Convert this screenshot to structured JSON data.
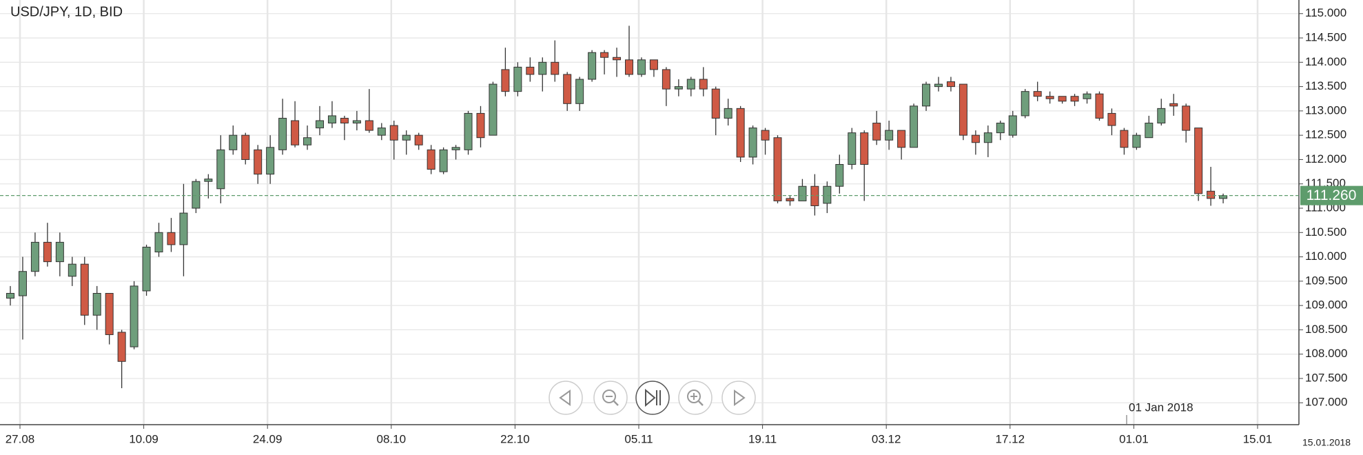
{
  "chart_data": {
    "type": "candlestick",
    "title": "USD/JPY, 1D, BID",
    "xtick_labels": [
      "27.08",
      "10.09",
      "24.09",
      "08.10",
      "22.10",
      "05.11",
      "19.11",
      "03.12",
      "17.12",
      "01.01",
      "15.01"
    ],
    "open": [
      109.15,
      109.2,
      109.7,
      110.3,
      109.9,
      109.6,
      109.85,
      108.8,
      109.25,
      108.45,
      108.15,
      109.3,
      110.1,
      110.5,
      110.25,
      111.0,
      111.55,
      111.4,
      112.2,
      112.5,
      112.2,
      111.7,
      112.2,
      112.8,
      112.3,
      112.65,
      112.75,
      112.85,
      112.75,
      112.8,
      112.5,
      112.7,
      112.4,
      112.5,
      112.2,
      111.75,
      112.2,
      112.2,
      112.95,
      112.5,
      113.85,
      113.4,
      113.9,
      113.75,
      114.0,
      113.75,
      113.15,
      113.65,
      114.2,
      114.1,
      114.05,
      113.75,
      114.05,
      113.85,
      113.45,
      113.45,
      113.65,
      113.45,
      112.85,
      113.05,
      112.05,
      112.6,
      112.45,
      111.2,
      111.15,
      111.45,
      111.1,
      111.45,
      111.9,
      112.55,
      112.75,
      112.4,
      112.6,
      112.25,
      113.1,
      113.5,
      113.6,
      113.55,
      112.5,
      112.35,
      112.55,
      112.5,
      112.9,
      113.4,
      113.3,
      113.3,
      113.3,
      113.25,
      113.35,
      112.95,
      112.6,
      112.25,
      112.45,
      112.75,
      113.15,
      113.1,
      112.65,
      111.35,
      111.2
    ],
    "high": [
      109.4,
      110.0,
      110.5,
      110.7,
      110.5,
      110.0,
      110.0,
      109.4,
      109.25,
      108.5,
      109.5,
      110.25,
      110.7,
      110.8,
      111.5,
      111.6,
      111.7,
      112.5,
      112.7,
      112.55,
      112.3,
      112.5,
      113.25,
      113.2,
      112.7,
      113.1,
      113.2,
      112.9,
      113.0,
      113.45,
      112.75,
      112.8,
      112.6,
      112.55,
      112.3,
      112.25,
      112.3,
      113.0,
      113.1,
      113.6,
      114.3,
      114.0,
      114.1,
      114.1,
      114.45,
      113.8,
      113.7,
      114.25,
      114.25,
      114.3,
      114.75,
      114.1,
      114.05,
      113.9,
      113.65,
      113.7,
      113.9,
      113.5,
      113.25,
      113.1,
      112.7,
      112.65,
      112.5,
      111.25,
      111.6,
      111.7,
      111.55,
      112.1,
      112.65,
      112.6,
      113.0,
      112.8,
      112.6,
      113.15,
      113.6,
      113.7,
      113.7,
      113.55,
      112.6,
      112.7,
      112.8,
      113.0,
      113.45,
      113.6,
      113.4,
      113.3,
      113.35,
      113.4,
      113.4,
      113.05,
      112.65,
      112.55,
      112.9,
      113.25,
      113.35,
      113.15,
      112.65,
      111.85,
      111.3
    ],
    "low": [
      109.0,
      108.3,
      109.6,
      109.8,
      109.6,
      109.4,
      108.6,
      108.5,
      108.2,
      107.3,
      108.1,
      109.2,
      110.0,
      110.1,
      109.6,
      110.9,
      111.2,
      111.1,
      112.1,
      111.9,
      111.5,
      111.5,
      112.1,
      112.25,
      112.2,
      112.5,
      112.65,
      112.4,
      112.6,
      112.55,
      112.4,
      112.0,
      112.1,
      112.2,
      111.7,
      111.7,
      112.0,
      112.1,
      112.25,
      112.5,
      113.3,
      113.3,
      113.6,
      113.4,
      113.6,
      113.0,
      113.0,
      113.6,
      113.75,
      113.7,
      113.7,
      113.7,
      113.7,
      113.1,
      113.3,
      113.3,
      113.3,
      112.5,
      112.7,
      111.95,
      111.9,
      112.1,
      111.1,
      111.05,
      111.15,
      110.85,
      110.9,
      111.3,
      111.8,
      111.15,
      112.3,
      112.2,
      112.0,
      112.25,
      113.0,
      113.4,
      113.4,
      112.4,
      112.1,
      112.05,
      112.4,
      112.45,
      112.85,
      113.2,
      113.15,
      113.15,
      113.1,
      113.15,
      112.8,
      112.5,
      112.1,
      112.2,
      112.45,
      112.7,
      112.9,
      112.35,
      111.15,
      111.05,
      111.1
    ],
    "close": [
      109.25,
      109.7,
      110.3,
      109.9,
      110.3,
      109.85,
      108.8,
      109.25,
      108.4,
      107.85,
      109.4,
      110.2,
      110.5,
      110.25,
      110.9,
      111.55,
      111.6,
      112.2,
      112.5,
      112.0,
      111.7,
      112.25,
      112.85,
      112.3,
      112.45,
      112.8,
      112.9,
      112.75,
      112.8,
      112.6,
      112.65,
      112.4,
      112.5,
      112.3,
      111.8,
      112.2,
      112.25,
      112.95,
      112.45,
      113.55,
      113.4,
      113.9,
      113.75,
      114.0,
      113.75,
      113.15,
      113.65,
      114.2,
      114.1,
      114.05,
      113.75,
      114.05,
      113.85,
      113.45,
      113.5,
      113.65,
      113.45,
      112.85,
      113.05,
      112.05,
      112.65,
      112.4,
      111.15,
      111.15,
      111.45,
      111.05,
      111.45,
      111.9,
      112.55,
      111.9,
      112.4,
      112.6,
      112.25,
      113.1,
      113.55,
      113.55,
      113.5,
      112.5,
      112.35,
      112.55,
      112.75,
      112.9,
      113.4,
      113.3,
      113.25,
      113.2,
      113.2,
      113.35,
      112.85,
      112.7,
      112.25,
      112.5,
      112.75,
      113.05,
      113.1,
      112.6,
      111.3,
      111.2,
      111.26
    ],
    "up_color": "#6f9e7c",
    "down_color": "#cf5a45",
    "ylim": [
      106.55,
      115.28
    ],
    "yticks": [
      {
        "value": 107,
        "label": "107.000"
      },
      {
        "value": 107.5,
        "label": "107.500"
      },
      {
        "value": 108,
        "label": "108.000"
      },
      {
        "value": 108.5,
        "label": "108.500"
      },
      {
        "value": 109,
        "label": "109.000"
      },
      {
        "value": 109.5,
        "label": "109.500"
      },
      {
        "value": 110,
        "label": "110.000"
      },
      {
        "value": 110.5,
        "label": "110.500"
      },
      {
        "value": 111,
        "label": "111.000"
      },
      {
        "value": 111.5,
        "label": "111.500"
      },
      {
        "value": 112,
        "label": "112.000"
      },
      {
        "value": 112.5,
        "label": "112.500"
      },
      {
        "value": 113,
        "label": "113.000"
      },
      {
        "value": 113.5,
        "label": "113.500"
      },
      {
        "value": 114,
        "label": "114.000"
      },
      {
        "value": 114.5,
        "label": "114.500"
      },
      {
        "value": 115,
        "label": "115.000"
      }
    ],
    "grid": true,
    "last_price": {
      "value": 111.26,
      "label": "111.260",
      "color": "#5e9c6c"
    },
    "annotation": "01 Jan 2018",
    "end_date_label": "15.01.2018"
  }
}
